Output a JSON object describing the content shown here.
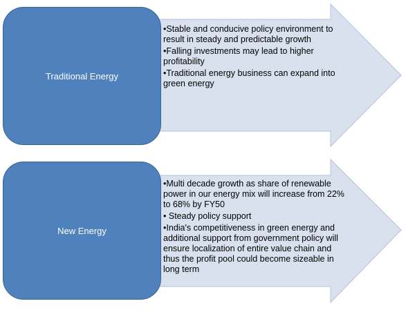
{
  "rows": [
    {
      "title": "Traditional Energy",
      "bullet_char": "•",
      "bullets": [
        "Stable and conducive policy environment to result in steady and predictable growth",
        "Falling investments may lead to higher profitability",
        "Traditional energy business can expand into green energy"
      ]
    },
    {
      "title": "New Energy",
      "bullet_char": "•",
      "bullets": [
        "Multi decade growth as share of renewable power in our energy mix will increase from 22% to 68% by FY50",
        " Steady policy support",
        "India's competitiveness in green energy and additional support from government policy will ensure localization of entire value chain and thus the profit pool could become sizeable in long term"
      ]
    }
  ],
  "colors": {
    "box_fill": "#4f81bd",
    "box_border": "#3a6494",
    "arrow_fill": "#d9e1ee",
    "arrow_border": "#b4c2d8",
    "box_text": "#ffffff",
    "bullet_text": "#000000"
  }
}
